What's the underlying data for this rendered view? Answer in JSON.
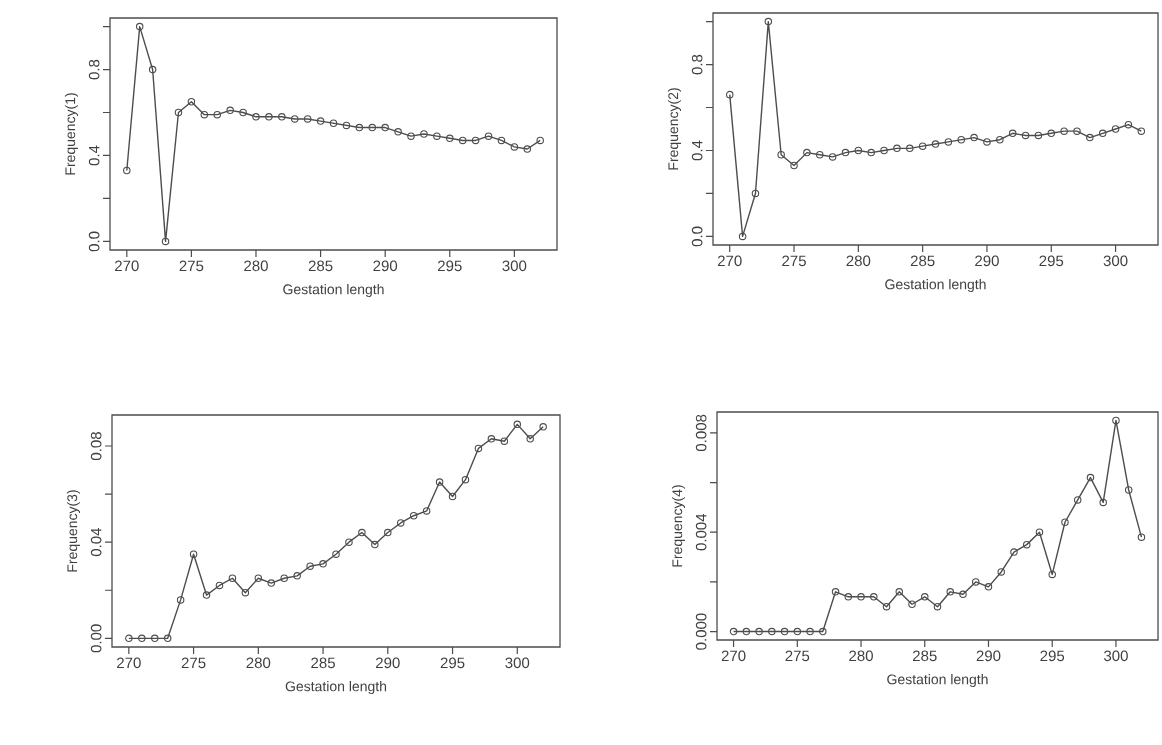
{
  "chart_data": [
    {
      "type": "line",
      "marker": "circle",
      "xlabel": "Gestation length",
      "ylabel": "Frequency(1)",
      "x": [
        270,
        271,
        272,
        273,
        274,
        275,
        276,
        277,
        278,
        279,
        280,
        281,
        282,
        283,
        284,
        285,
        286,
        287,
        288,
        289,
        290,
        291,
        292,
        293,
        294,
        295,
        296,
        297,
        298,
        299,
        300,
        301,
        302
      ],
      "xlim": [
        268.7,
        303.3
      ],
      "ylim": [
        -0.04,
        1.04
      ],
      "xticks": [
        270,
        275,
        280,
        285,
        290,
        295,
        300
      ],
      "yticks": [
        {
          "value": 0,
          "label": "0.0"
        },
        {
          "value": 0.2,
          "label": null
        },
        {
          "value": 0.4,
          "label": "0.4"
        },
        {
          "value": 0.6,
          "label": null
        },
        {
          "value": 0.8,
          "label": "0.8"
        },
        {
          "value": 1.0,
          "label": null
        }
      ],
      "series": [
        {
          "color": "#4d4d4d",
          "values": [
            0.33,
            1.0,
            0.8,
            0.0,
            0.6,
            0.65,
            0.59,
            0.59,
            0.61,
            0.6,
            0.58,
            0.58,
            0.58,
            0.57,
            0.57,
            0.56,
            0.55,
            0.54,
            0.53,
            0.53,
            0.53,
            0.51,
            0.49,
            0.5,
            0.49,
            0.48,
            0.47,
            0.47,
            0.49,
            0.47,
            0.44,
            0.43,
            0.47
          ]
        }
      ]
    },
    {
      "type": "line",
      "marker": "circle",
      "xlabel": "Gestation length",
      "ylabel": "Frequency(2)",
      "x": [
        270,
        271,
        272,
        273,
        274,
        275,
        276,
        277,
        278,
        279,
        280,
        281,
        282,
        283,
        284,
        285,
        286,
        287,
        288,
        289,
        290,
        291,
        292,
        293,
        294,
        295,
        296,
        297,
        298,
        299,
        300,
        301,
        302
      ],
      "xlim": [
        268.7,
        303.3
      ],
      "ylim": [
        -0.04,
        1.04
      ],
      "xticks": [
        270,
        275,
        280,
        285,
        290,
        295,
        300
      ],
      "yticks": [
        {
          "value": 0,
          "label": "0.0"
        },
        {
          "value": 0.2,
          "label": null
        },
        {
          "value": 0.4,
          "label": "0.4"
        },
        {
          "value": 0.6,
          "label": null
        },
        {
          "value": 0.8,
          "label": "0.8"
        },
        {
          "value": 1.0,
          "label": null
        }
      ],
      "series": [
        {
          "color": "#4d4d4d",
          "values": [
            0.66,
            0.0,
            0.2,
            1.0,
            0.38,
            0.33,
            0.39,
            0.38,
            0.37,
            0.39,
            0.4,
            0.39,
            0.4,
            0.41,
            0.41,
            0.42,
            0.43,
            0.44,
            0.45,
            0.46,
            0.44,
            0.45,
            0.48,
            0.47,
            0.47,
            0.48,
            0.49,
            0.49,
            0.46,
            0.48,
            0.5,
            0.52,
            0.49
          ]
        }
      ]
    },
    {
      "type": "line",
      "marker": "circle",
      "xlabel": "Gestation length",
      "ylabel": "Frequency(3)",
      "x": [
        270,
        271,
        272,
        273,
        274,
        275,
        276,
        277,
        278,
        279,
        280,
        281,
        282,
        283,
        284,
        285,
        286,
        287,
        288,
        289,
        290,
        291,
        292,
        293,
        294,
        295,
        296,
        297,
        298,
        299,
        300,
        301,
        302
      ],
      "xlim": [
        268.7,
        303.3
      ],
      "ylim": [
        -0.0036,
        0.0929
      ],
      "xticks": [
        270,
        275,
        280,
        285,
        290,
        295,
        300
      ],
      "yticks": [
        {
          "value": 0,
          "label": "0.00"
        },
        {
          "value": 0.02,
          "label": null
        },
        {
          "value": 0.04,
          "label": "0.04"
        },
        {
          "value": 0.06,
          "label": null
        },
        {
          "value": 0.08,
          "label": "0.08"
        }
      ],
      "series": [
        {
          "color": "#4d4d4d",
          "values": [
            0,
            0,
            0,
            0,
            0.016,
            0.035,
            0.018,
            0.022,
            0.025,
            0.019,
            0.025,
            0.023,
            0.025,
            0.026,
            0.03,
            0.031,
            0.035,
            0.04,
            0.044,
            0.039,
            0.044,
            0.048,
            0.051,
            0.053,
            0.065,
            0.059,
            0.066,
            0.079,
            0.083,
            0.082,
            0.089,
            0.083,
            0.088
          ]
        }
      ]
    },
    {
      "type": "line",
      "marker": "circle",
      "xlabel": "Gestation length",
      "ylabel": "Frequency(4)",
      "x": [
        270,
        271,
        272,
        273,
        274,
        275,
        276,
        277,
        278,
        279,
        280,
        281,
        282,
        283,
        284,
        285,
        286,
        287,
        288,
        289,
        290,
        291,
        292,
        293,
        294,
        295,
        296,
        297,
        298,
        299,
        300,
        301,
        302
      ],
      "xlim": [
        268.7,
        303.3
      ],
      "ylim": [
        -0.00034,
        0.00884
      ],
      "xticks": [
        270,
        275,
        280,
        285,
        290,
        295,
        300
      ],
      "yticks": [
        {
          "value": 0,
          "label": "0.000"
        },
        {
          "value": 0.002,
          "label": null
        },
        {
          "value": 0.004,
          "label": "0.004"
        },
        {
          "value": 0.006,
          "label": null
        },
        {
          "value": 0.008,
          "label": "0.008"
        }
      ],
      "series": [
        {
          "color": "#4d4d4d",
          "values": [
            0,
            0,
            0,
            0,
            0,
            0,
            0,
            0,
            0.0016,
            0.0014,
            0.0014,
            0.0014,
            0.001,
            0.0016,
            0.0011,
            0.0014,
            0.001,
            0.0016,
            0.0015,
            0.002,
            0.0018,
            0.0024,
            0.0032,
            0.0035,
            0.004,
            0.0023,
            0.0044,
            0.0053,
            0.0062,
            0.0052,
            0.0085,
            0.0057,
            0.0038
          ]
        }
      ]
    }
  ]
}
